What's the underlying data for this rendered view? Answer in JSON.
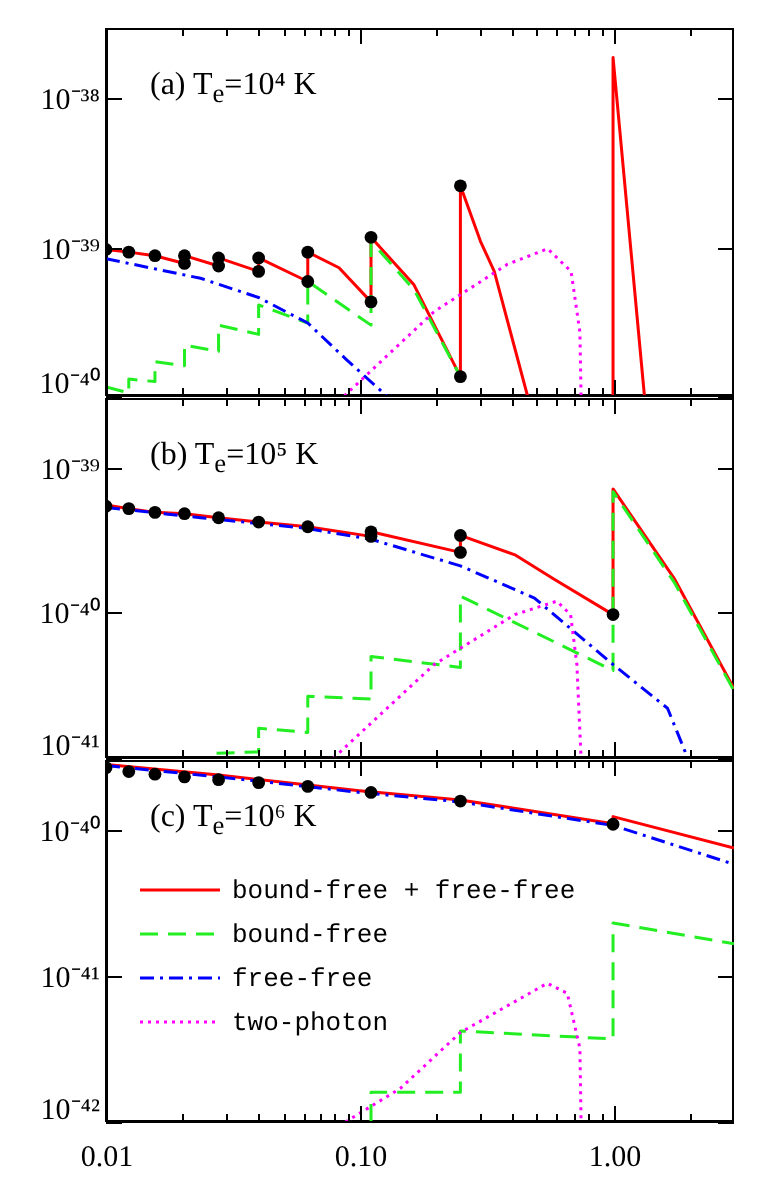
{
  "chart_data": [
    {
      "type": "line",
      "title": "(a) T$_{e}$=10⁴ K",
      "log": "xy",
      "xlim": [
        0.01,
        3
      ],
      "ylim": [
        1e-40,
        3e-38
      ],
      "tick_labels": "y",
      "legend": false,
      "xticks": [
        {
          "value": 0.01,
          "label": null
        },
        {
          "value": 0.02,
          "label": null
        },
        {
          "value": 0.03,
          "label": null
        },
        {
          "value": 0.04,
          "label": null
        },
        {
          "value": 0.05,
          "label": null
        },
        {
          "value": 0.06,
          "label": null
        },
        {
          "value": 0.07,
          "label": null
        },
        {
          "value": 0.08,
          "label": null
        },
        {
          "value": 0.09,
          "label": null
        },
        {
          "value": 0.1,
          "label": null
        },
        {
          "value": 0.2,
          "label": null
        },
        {
          "value": 0.3,
          "label": null
        },
        {
          "value": 0.4,
          "label": null
        },
        {
          "value": 0.5,
          "label": null
        },
        {
          "value": 0.6,
          "label": null
        },
        {
          "value": 0.7,
          "label": null
        },
        {
          "value": 0.8,
          "label": null
        },
        {
          "value": 0.9,
          "label": null
        },
        {
          "value": 1,
          "label": null
        },
        {
          "value": 2,
          "label": null
        }
      ],
      "yticks": [
        {
          "value": 1e-40,
          "label": "10⁻⁴⁰"
        },
        {
          "value": 1e-39,
          "label": "10⁻³⁹"
        },
        {
          "value": 1e-38,
          "label": "10⁻³⁸"
        }
      ],
      "series": [
        {
          "type": "line",
          "color": "#ff0000",
          "line_style": "solid",
          "x": [
            0.01,
            0.0123,
            0.0156,
            0.0204,
            0.0204,
            0.0278,
            0.0278,
            0.04,
            0.04,
            0.0625,
            0.0625,
            0.083,
            0.111,
            0.111,
            0.164,
            0.25,
            0.25,
            0.3,
            0.34,
            0.46,
            0.7,
            1,
            1,
            1.14,
            1.33
          ],
          "values": [
            9.7e-40,
            9.3e-40,
            8.8e-40,
            7.8e-40,
            8.8e-40,
            7.5e-40,
            8.5e-40,
            6.9e-40,
            8.5e-40,
            5.9e-40,
            9.3e-40,
            7.3e-40,
            4.3e-40,
            1.17e-39,
            5.6e-40,
            1.35e-40,
            2.6e-39,
            1.1e-39,
            6.9e-40,
            1e-40,
            null,
            1e-40,
            1.9e-38,
            1.7e-39,
            1e-40
          ]
        },
        {
          "type": "line",
          "color": "#22ee22",
          "line_style": "dashed",
          "x": [
            0.01,
            0.0123,
            0.0123,
            0.0156,
            0.0156,
            0.0204,
            0.0204,
            0.0278,
            0.0278,
            0.04,
            0.04,
            0.0625,
            0.0625,
            0.111,
            0.111,
            0.164,
            0.25
          ],
          "values": [
            1.15e-40,
            1.05e-40,
            1.3e-40,
            1.25e-40,
            1.7e-40,
            1.6e-40,
            2.2e-40,
            2e-40,
            3e-40,
            2.6e-40,
            4.1e-40,
            3.1e-40,
            5.9e-40,
            3e-40,
            1.1e-39,
            5.2e-40,
            1.35e-40
          ]
        },
        {
          "type": "line",
          "color": "#0000ff",
          "line_style": "dashdot",
          "x": [
            0.01,
            0.0236,
            0.04,
            0.0625,
            0.089,
            0.128
          ],
          "values": [
            8.4e-40,
            6.2e-40,
            4.6e-40,
            3.1e-40,
            1.75e-40,
            1e-40
          ]
        },
        {
          "type": "line",
          "color": "#ff00ff",
          "line_style": "dotted",
          "x": [
            0.087,
            0.197,
            0.383,
            0.552,
            0.683,
            0.74,
            0.748
          ],
          "values": [
            1e-40,
            3.7e-40,
            7.7e-40,
            9.8e-40,
            6.9e-40,
            2.7e-40,
            1e-40
          ]
        },
        {
          "type": "scatter",
          "color": "#000000",
          "marker": "circle",
          "x": [
            0.01,
            0.0123,
            0.0156,
            0.0204,
            0.0204,
            0.0278,
            0.0278,
            0.04,
            0.04,
            0.0625,
            0.0625,
            0.111,
            0.111,
            0.25,
            0.25
          ],
          "values": [
            9.7e-40,
            9.3e-40,
            8.8e-40,
            7.8e-40,
            8.8e-40,
            7.5e-40,
            8.5e-40,
            6.9e-40,
            8.5e-40,
            5.9e-40,
            9.3e-40,
            4.3e-40,
            1.17e-39,
            1.35e-40,
            2.6e-39
          ]
        }
      ]
    },
    {
      "type": "line",
      "title": "(b) T$_{e}$=10⁵ K",
      "log": "xy",
      "xlim": [
        0.01,
        3
      ],
      "ylim": [
        1e-41,
        3e-39
      ],
      "tick_labels": "y",
      "legend": false,
      "xticks": [
        {
          "value": 0.01,
          "label": null
        },
        {
          "value": 0.02,
          "label": null
        },
        {
          "value": 0.03,
          "label": null
        },
        {
          "value": 0.04,
          "label": null
        },
        {
          "value": 0.05,
          "label": null
        },
        {
          "value": 0.06,
          "label": null
        },
        {
          "value": 0.07,
          "label": null
        },
        {
          "value": 0.08,
          "label": null
        },
        {
          "value": 0.09,
          "label": null
        },
        {
          "value": 0.1,
          "label": null
        },
        {
          "value": 0.2,
          "label": null
        },
        {
          "value": 0.3,
          "label": null
        },
        {
          "value": 0.4,
          "label": null
        },
        {
          "value": 0.5,
          "label": null
        },
        {
          "value": 0.6,
          "label": null
        },
        {
          "value": 0.7,
          "label": null
        },
        {
          "value": 0.8,
          "label": null
        },
        {
          "value": 0.9,
          "label": null
        },
        {
          "value": 1,
          "label": null
        },
        {
          "value": 2,
          "label": null
        }
      ],
      "yticks": [
        {
          "value": 1e-41,
          "label": "10⁻⁴¹"
        },
        {
          "value": 1e-40,
          "label": "10⁻⁴⁰"
        },
        {
          "value": 1e-39,
          "label": "10⁻³⁹"
        }
      ],
      "series": [
        {
          "type": "line",
          "color": "#ff0000",
          "line_style": "solid",
          "x": [
            0.01,
            0.0123,
            0.0156,
            0.0204,
            0.0278,
            0.04,
            0.0625,
            0.111,
            0.111,
            0.25,
            0.25,
            0.41,
            0.586,
            1,
            1,
            1.75,
            3
          ],
          "values": [
            5.5e-40,
            5.2e-40,
            4.9e-40,
            4.8e-40,
            4.5e-40,
            4.2e-40,
            3.9e-40,
            3.35e-40,
            3.6e-40,
            2.6e-40,
            3.4e-40,
            2.5e-40,
            1.7e-40,
            9.7e-41,
            7.1e-40,
            1.7e-40,
            3e-41
          ]
        },
        {
          "type": "line",
          "color": "#22ee22",
          "line_style": "dashed",
          "x": [
            0.0273,
            0.04,
            0.04,
            0.0625,
            0.0625,
            0.111,
            0.111,
            0.25,
            0.25,
            1,
            1,
            1.75,
            3
          ],
          "values": [
            1.08e-41,
            1.1e-41,
            1.6e-41,
            1.5e-41,
            2.66e-41,
            2.55e-41,
            5e-41,
            4.2e-41,
            1.3e-40,
            4e-41,
            6.8e-40,
            1.6e-40,
            2.9e-41
          ]
        },
        {
          "type": "line",
          "color": "#0000ff",
          "line_style": "dashdot",
          "x": [
            0.01,
            0.0236,
            0.062,
            0.111,
            0.25,
            0.49,
            1,
            1.64,
            1.97
          ],
          "values": [
            5.3e-40,
            4.5e-40,
            3.8e-40,
            3.2e-40,
            2.1e-40,
            1.26e-40,
            4.4e-41,
            2.2e-41,
            1e-41
          ]
        },
        {
          "type": "line",
          "color": "#ff00ff",
          "line_style": "dotted",
          "x": [
            0.079,
            0.197,
            0.41,
            0.6,
            0.68,
            0.72,
            0.748
          ],
          "values": [
            1e-41,
            4.4e-41,
            9.7e-41,
            1.2e-40,
            9.7e-41,
            4.4e-41,
            1e-41
          ]
        },
        {
          "type": "scatter",
          "color": "#000000",
          "marker": "circle",
          "x": [
            0.01,
            0.0123,
            0.0156,
            0.0204,
            0.0278,
            0.04,
            0.0625,
            0.111,
            0.111,
            0.25,
            0.25,
            1
          ],
          "values": [
            5.4e-40,
            5.2e-40,
            4.9e-40,
            4.8e-40,
            4.5e-40,
            4.2e-40,
            3.9e-40,
            3.35e-40,
            3.6e-40,
            2.6e-40,
            3.4e-40,
            9.7e-41
          ]
        }
      ]
    },
    {
      "type": "line",
      "title": "(c) T$_{e}$=10⁶ K",
      "log": "xy",
      "xlim": [
        0.01,
        3
      ],
      "ylim": [
        1e-42,
        3e-40
      ],
      "legend": "left",
      "xticks": [
        {
          "value": 0.01,
          "label": "0.01"
        },
        {
          "value": 0.02,
          "label": null
        },
        {
          "value": 0.03,
          "label": null
        },
        {
          "value": 0.04,
          "label": null
        },
        {
          "value": 0.05,
          "label": null
        },
        {
          "value": 0.06,
          "label": null
        },
        {
          "value": 0.07,
          "label": null
        },
        {
          "value": 0.08,
          "label": null
        },
        {
          "value": 0.09,
          "label": null
        },
        {
          "value": 0.1,
          "label": "0.10"
        },
        {
          "value": 0.2,
          "label": null
        },
        {
          "value": 0.3,
          "label": null
        },
        {
          "value": 0.4,
          "label": null
        },
        {
          "value": 0.5,
          "label": null
        },
        {
          "value": 0.6,
          "label": null
        },
        {
          "value": 0.7,
          "label": null
        },
        {
          "value": 0.8,
          "label": null
        },
        {
          "value": 0.9,
          "label": null
        },
        {
          "value": 1,
          "label": "1.00"
        },
        {
          "value": 2,
          "label": null
        }
      ],
      "yticks": [
        {
          "value": 1e-42,
          "label": "10⁻⁴²"
        },
        {
          "value": 1e-41,
          "label": "10⁻⁴¹"
        },
        {
          "value": 1e-40,
          "label": "10⁻⁴⁰"
        }
      ],
      "series": [
        {
          "type": "line",
          "name": "bound-free + free-free",
          "color": "#ff0000",
          "line_style": "solid",
          "x": [
            0.01,
            0.0278,
            0.1,
            0.25,
            1,
            1,
            3
          ],
          "values": [
            2.8e-40,
            2.37e-40,
            1.85e-40,
            1.6e-40,
            1.1e-40,
            1.23e-40,
            7.5e-41
          ]
        },
        {
          "type": "line",
          "name": "bound-free",
          "color": "#22ee22",
          "line_style": "dashed",
          "x": [
            0.111,
            0.111,
            0.25,
            0.25,
            1,
            1,
            3
          ],
          "values": [
            1e-42,
            1.6e-42,
            1.6e-42,
            4.2e-42,
            3.7e-42,
            2.3e-41,
            1.66e-41
          ]
        },
        {
          "type": "line",
          "name": "free-free",
          "color": "#0000ff",
          "line_style": "dashdot",
          "x": [
            0.01,
            0.04,
            0.1,
            0.25,
            1,
            3
          ],
          "values": [
            2.75e-40,
            2.15e-40,
            1.8e-40,
            1.55e-40,
            1.07e-40,
            5.8e-41
          ]
        },
        {
          "type": "line",
          "name": "two-photon",
          "color": "#ff00ff",
          "line_style": "dotted",
          "x": [
            0.088,
            0.145,
            0.25,
            0.55,
            0.66,
            0.74,
            0.748
          ],
          "values": [
            1e-42,
            1.7e-42,
            4.1e-42,
            8.9e-42,
            7.6e-42,
            3.2e-42,
            1e-42
          ]
        },
        {
          "type": "scatter",
          "color": "#000000",
          "marker": "circle",
          "x": [
            0.01,
            0.0123,
            0.0156,
            0.0204,
            0.0278,
            0.04,
            0.0625,
            0.111,
            0.25,
            1
          ],
          "values": [
            2.66e-40,
            2.5e-40,
            2.4e-40,
            2.3e-40,
            2.2e-40,
            2.1e-40,
            1.98e-40,
            1.8e-40,
            1.57e-40,
            1.09e-40
          ]
        }
      ]
    }
  ]
}
